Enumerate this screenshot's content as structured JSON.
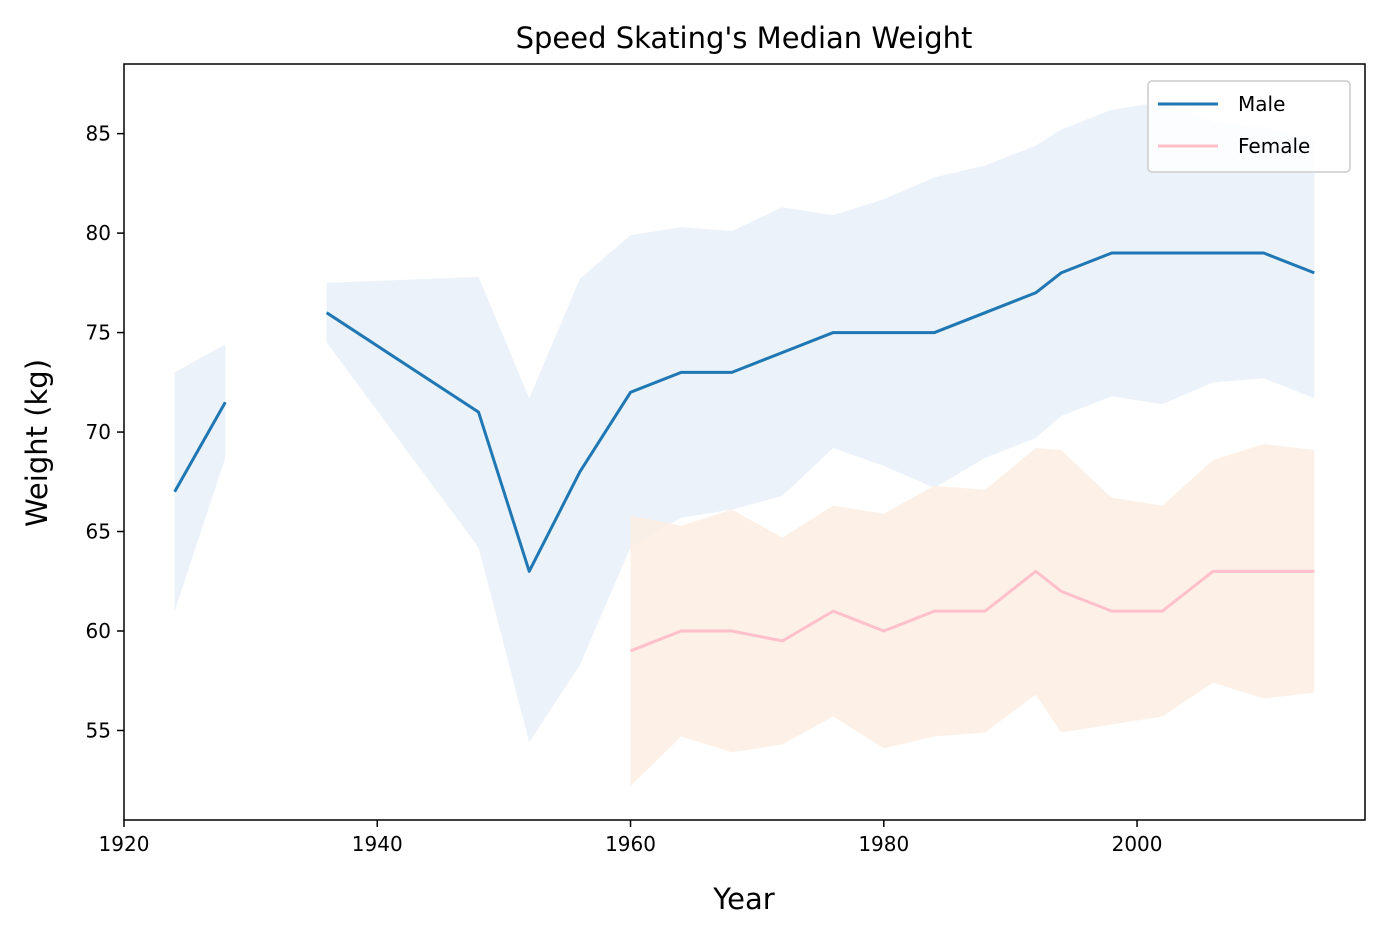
{
  "chart_data": {
    "type": "line",
    "title": "Speed Skating's Median Weight",
    "xlabel": "Year",
    "ylabel": "Weight (kg)",
    "xlim": [
      1920,
      2018
    ],
    "ylim": [
      50.5,
      88.5
    ],
    "xticks": [
      1920,
      1940,
      1960,
      1980,
      2000
    ],
    "yticks": [
      55,
      60,
      65,
      70,
      75,
      80,
      85
    ],
    "legend_position": "top-right",
    "grid": false,
    "series": [
      {
        "name": "Male",
        "color": "#1f77b4",
        "band_color": "#e8f0f8",
        "segments": [
          {
            "x": [
              1924,
              1928
            ],
            "y": [
              67,
              71.5
            ],
            "lower": [
              61,
              68.7
            ],
            "upper": [
              73,
              74.4
            ]
          },
          {
            "x": [
              1936,
              1948,
              1952,
              1956,
              1960,
              1964,
              1968,
              1972,
              1976,
              1980,
              1984,
              1988,
              1992,
              1994,
              1998,
              2002,
              2006,
              2010,
              2014
            ],
            "y": [
              76,
              71,
              63,
              68,
              72,
              73,
              73,
              74,
              75,
              75,
              75,
              76,
              77,
              78,
              79,
              79,
              79,
              79,
              78
            ],
            "lower": [
              74.5,
              64.2,
              54.4,
              58.3,
              64.2,
              65.7,
              66.1,
              66.8,
              69.2,
              68.3,
              67.2,
              68.7,
              69.7,
              70.8,
              71.8,
              71.4,
              72.5,
              72.7,
              71.7
            ],
            "upper": [
              77.5,
              77.8,
              71.7,
              77.7,
              79.9,
              80.3,
              80.1,
              81.3,
              80.9,
              81.7,
              82.8,
              83.4,
              84.4,
              85.2,
              86.2,
              86.6,
              85.6,
              85.3,
              84.7
            ]
          }
        ]
      },
      {
        "name": "Female",
        "color": "#ffc0cb",
        "band_color": "#fdefe3",
        "segments": [
          {
            "x": [
              1960,
              1964,
              1968,
              1972,
              1976,
              1980,
              1984,
              1988,
              1992,
              1994,
              1998,
              2002,
              2006,
              2010,
              2014
            ],
            "y": [
              59,
              60,
              60,
              59.5,
              61,
              60,
              61,
              61,
              63,
              62,
              61,
              61,
              63,
              63,
              63
            ],
            "lower": [
              52.2,
              54.7,
              53.9,
              54.3,
              55.7,
              54.1,
              54.7,
              54.9,
              56.8,
              54.9,
              55.3,
              55.7,
              57.4,
              56.6,
              56.9
            ],
            "upper": [
              65.8,
              65.3,
              66.1,
              64.7,
              66.3,
              65.9,
              67.3,
              67.1,
              69.2,
              69.1,
              66.7,
              66.3,
              68.6,
              69.4,
              69.1
            ]
          }
        ]
      }
    ]
  }
}
